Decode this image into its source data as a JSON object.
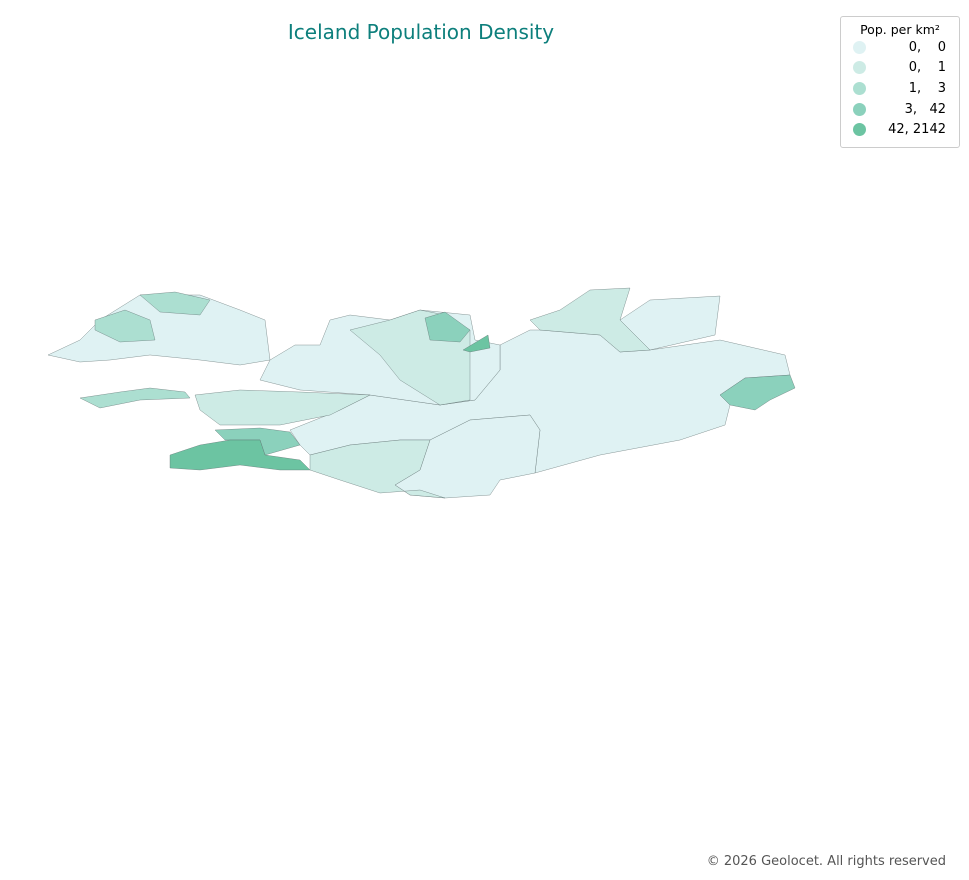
{
  "title": "Iceland Population Density",
  "legend": {
    "title": "Pop. per km²",
    "entries": [
      {
        "label": "0,    0",
        "color": "#dff2f3"
      },
      {
        "label": "0,    1",
        "color": "#cdebe5"
      },
      {
        "label": "1,    3",
        "color": "#acdfd1"
      },
      {
        "label": "3,   42",
        "color": "#8bd1bc"
      },
      {
        "label": "42, 2142",
        "color": "#6cc4a2"
      }
    ]
  },
  "footer": "© 2026 Geolocet. All rights reserved"
}
